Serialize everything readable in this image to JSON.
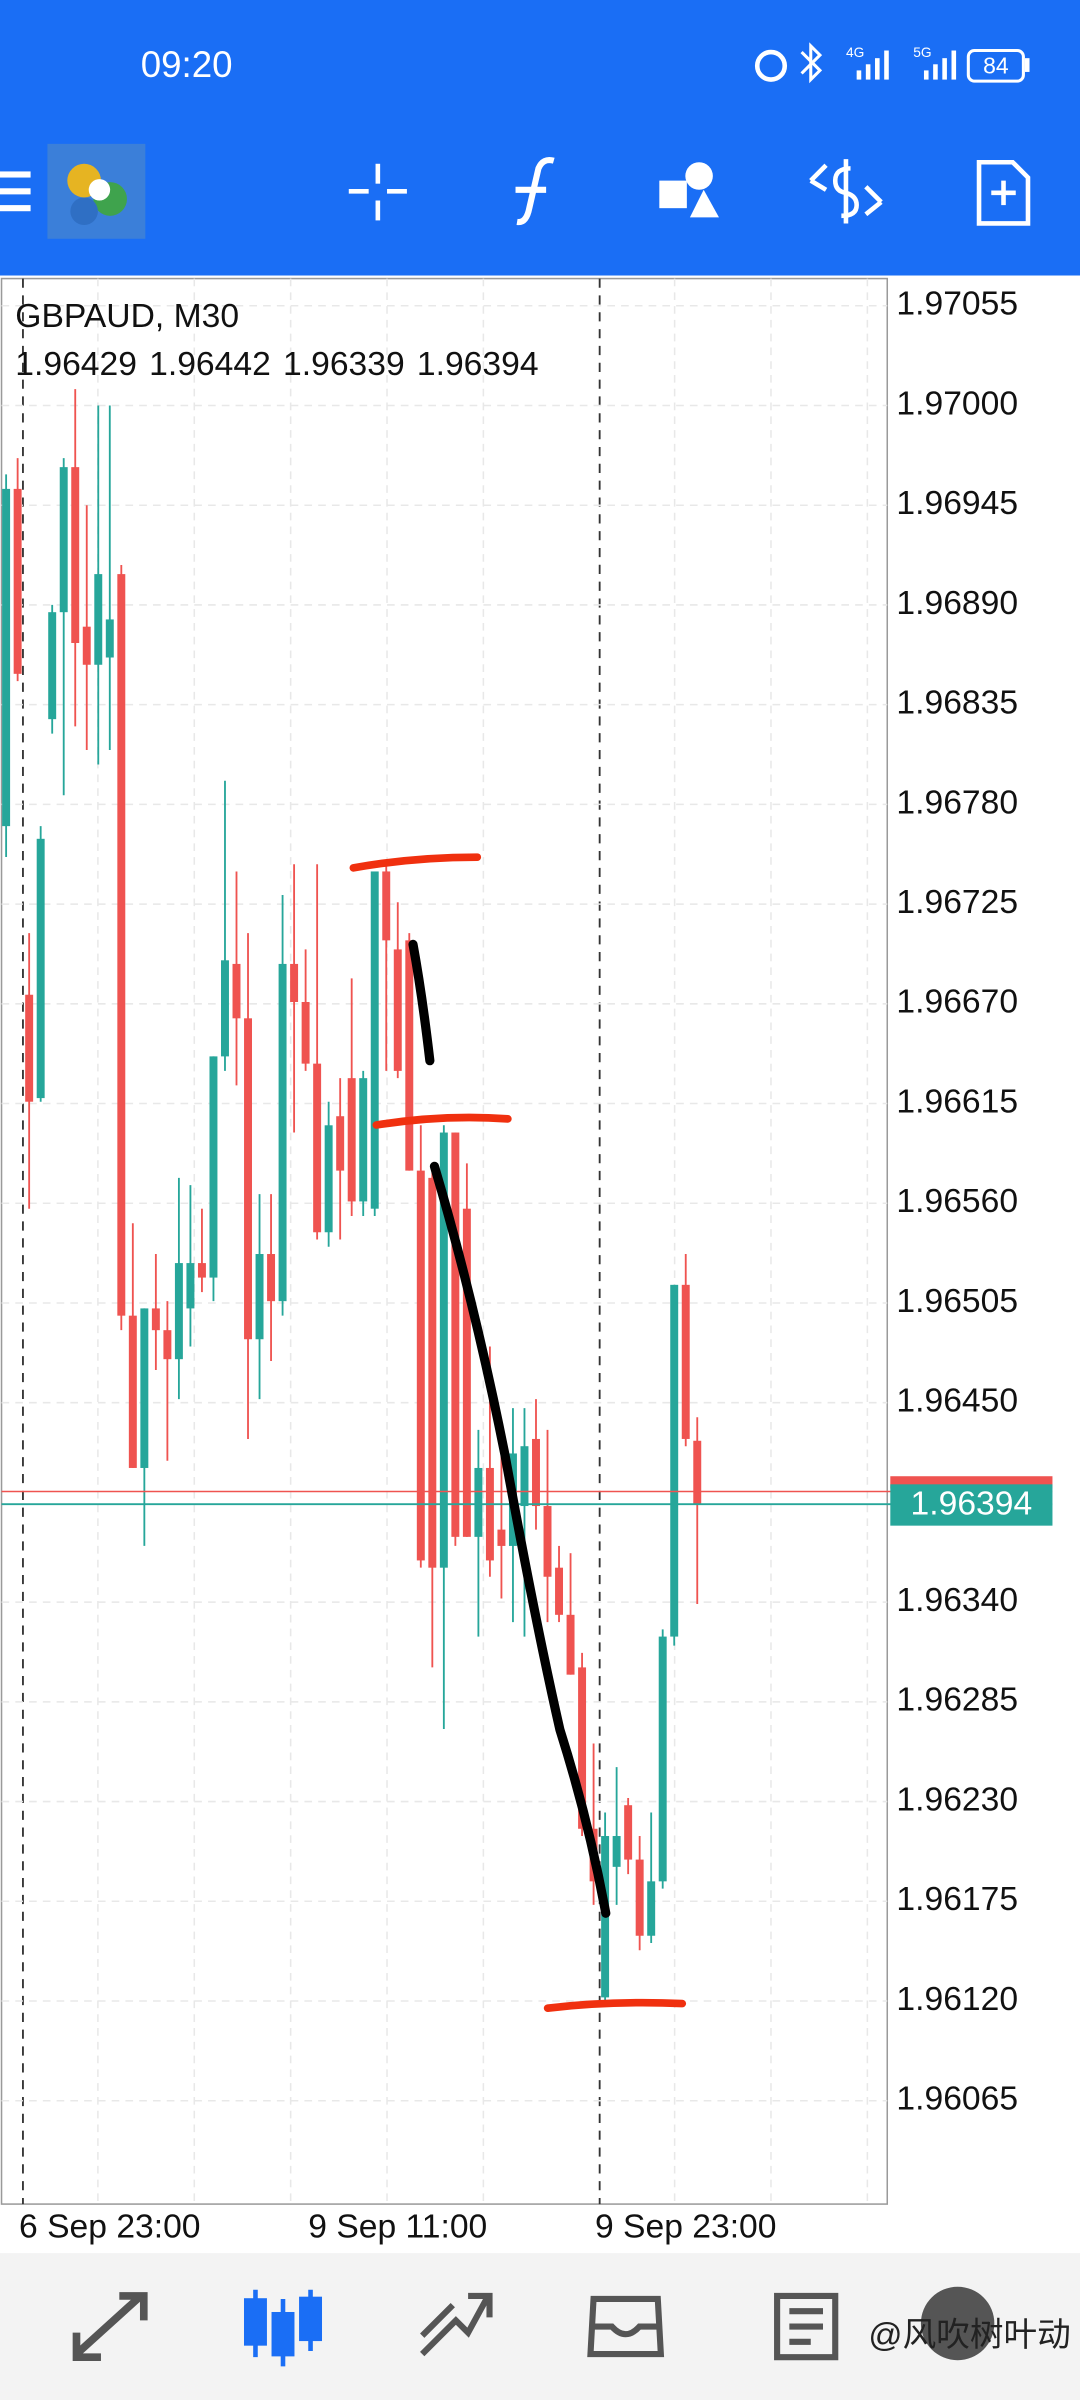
{
  "status_bar": {
    "time": "09:20",
    "network_1": "4G",
    "network_2": "5G",
    "battery": "84"
  },
  "watermark": "@风吹树叶动",
  "chart_data": {
    "type": "candlestick",
    "title": "GBPAUD, M30",
    "bull_color": "#26a69a",
    "bear_color": "#ef5350",
    "grid": true,
    "ylim": [
      1.96008,
      1.9707
    ],
    "yticks": [
      {
        "value": 1.97055,
        "label": "1.97055"
      },
      {
        "value": 1.97,
        "label": "1.97000"
      },
      {
        "value": 1.96945,
        "label": "1.96945"
      },
      {
        "value": 1.9689,
        "label": "1.96890"
      },
      {
        "value": 1.96835,
        "label": "1.96835"
      },
      {
        "value": 1.9678,
        "label": "1.96780"
      },
      {
        "value": 1.96725,
        "label": "1.96725"
      },
      {
        "value": 1.9667,
        "label": "1.96670"
      },
      {
        "value": 1.96615,
        "label": "1.96615"
      },
      {
        "value": 1.9656,
        "label": "1.96560"
      },
      {
        "value": 1.96505,
        "label": "1.96505"
      },
      {
        "value": 1.9645,
        "label": "1.96450"
      },
      {
        "value": 1.9634,
        "label": "1.96340"
      },
      {
        "value": 1.96285,
        "label": "1.96285"
      },
      {
        "value": 1.9623,
        "label": "1.96230"
      },
      {
        "value": 1.96175,
        "label": "1.96175"
      },
      {
        "value": 1.9612,
        "label": "1.96120"
      },
      {
        "value": 1.96065,
        "label": "1.96065"
      }
    ],
    "categories": [
      null,
      null,
      null,
      null,
      null,
      null,
      null,
      null,
      null,
      "6 Sep 23:00",
      null,
      null,
      null,
      null,
      null,
      null,
      null,
      null,
      null,
      null,
      null,
      null,
      null,
      null,
      null,
      null,
      null,
      null,
      null,
      null,
      null,
      null,
      null,
      null,
      "9 Sep 11:00",
      null,
      null,
      null,
      null,
      null,
      null,
      null,
      null,
      null,
      null,
      null,
      null,
      null,
      null,
      null,
      null,
      null,
      null,
      null,
      null,
      null,
      null,
      null,
      null,
      "9 Sep 23:00",
      null
    ],
    "open": [
      1.96768,
      1.96954,
      1.96675,
      1.96618,
      1.96827,
      1.96886,
      1.96966,
      1.96878,
      1.96857,
      1.96861,
      1.96907,
      1.96498,
      1.96414,
      1.96502,
      1.9649,
      1.96474,
      1.96502,
      1.96527,
      1.96519,
      1.96641,
      1.96692,
      1.96662,
      1.96485,
      1.96532,
      1.96506,
      1.96692,
      1.96671,
      1.96637,
      1.96544,
      1.96608,
      1.96629,
      1.96561,
      1.96557,
      1.96743,
      1.967,
      1.96705,
      1.96578,
      1.96574,
      1.96359,
      1.96599,
      1.96557,
      1.96376,
      1.96414,
      1.9638,
      1.96371,
      1.96393,
      1.9643,
      1.96393,
      1.96359,
      1.96333,
      1.96304,
      1.96215,
      1.96122,
      1.96194,
      1.96228,
      1.96198,
      1.96156,
      1.96186,
      1.96321,
      1.96515,
      1.96429
    ],
    "high": [
      1.96962,
      1.96971,
      1.96709,
      1.96768,
      1.9689,
      1.96971,
      1.97009,
      1.96945,
      1.97,
      1.97,
      1.96912,
      1.96549,
      1.96502,
      1.96532,
      1.96506,
      1.96574,
      1.9657,
      1.96557,
      1.96641,
      1.96793,
      1.96743,
      1.96709,
      1.96565,
      1.96565,
      1.9673,
      1.96747,
      1.967,
      1.96747,
      1.96616,
      1.96629,
      1.96684,
      1.96633,
      1.96743,
      1.96747,
      1.96726,
      1.96709,
      1.96603,
      1.96582,
      1.96603,
      1.96599,
      1.96582,
      1.96435,
      1.96481,
      1.96435,
      1.96447,
      1.96447,
      1.96452,
      1.96435,
      1.96371,
      1.96367,
      1.96312,
      1.96262,
      1.96224,
      1.96249,
      1.96232,
      1.96211,
      1.96224,
      1.96325,
      1.96515,
      1.96532,
      1.96442
    ],
    "low": [
      1.96751,
      1.96848,
      1.96557,
      1.96616,
      1.96819,
      1.96785,
      1.96823,
      1.9681,
      1.96802,
      1.9681,
      1.9649,
      1.96414,
      1.96371,
      1.96468,
      1.96418,
      1.96452,
      1.96481,
      1.96511,
      1.96506,
      1.96633,
      1.96625,
      1.9643,
      1.96452,
      1.96473,
      1.96498,
      1.96599,
      1.96633,
      1.9654,
      1.96536,
      1.9654,
      1.96553,
      1.96553,
      1.96553,
      1.96633,
      1.96629,
      1.96578,
      1.96359,
      1.96304,
      1.9627,
      1.96371,
      1.96376,
      1.96321,
      1.96354,
      1.96342,
      1.96329,
      1.96321,
      1.9638,
      1.96329,
      1.96329,
      1.963,
      1.96211,
      1.96173,
      1.96118,
      1.96173,
      1.9619,
      1.96148,
      1.96152,
      1.96182,
      1.96316,
      1.96426,
      1.96339
    ],
    "close": [
      1.96954,
      1.96852,
      1.96616,
      1.96761,
      1.96886,
      1.96966,
      1.96869,
      1.96857,
      1.96907,
      1.96882,
      1.96498,
      1.96414,
      1.96502,
      1.9649,
      1.96474,
      1.96527,
      1.96527,
      1.96519,
      1.96641,
      1.96694,
      1.96662,
      1.96485,
      1.96532,
      1.96506,
      1.96692,
      1.96671,
      1.96637,
      1.96544,
      1.96603,
      1.96578,
      1.96561,
      1.96629,
      1.96743,
      1.96705,
      1.96633,
      1.96578,
      1.96363,
      1.96359,
      1.96599,
      1.96376,
      1.96376,
      1.96414,
      1.96363,
      1.96371,
      1.96422,
      1.96426,
      1.96393,
      1.96354,
      1.96333,
      1.963,
      1.96215,
      1.96186,
      1.96211,
      1.96211,
      1.96198,
      1.96156,
      1.96186,
      1.96321,
      1.96515,
      1.9643,
      1.96394
    ],
    "bid": 1.96394,
    "ask": 1.96401,
    "bid_color": "#26a69a",
    "ask_color": "#ef5350"
  }
}
